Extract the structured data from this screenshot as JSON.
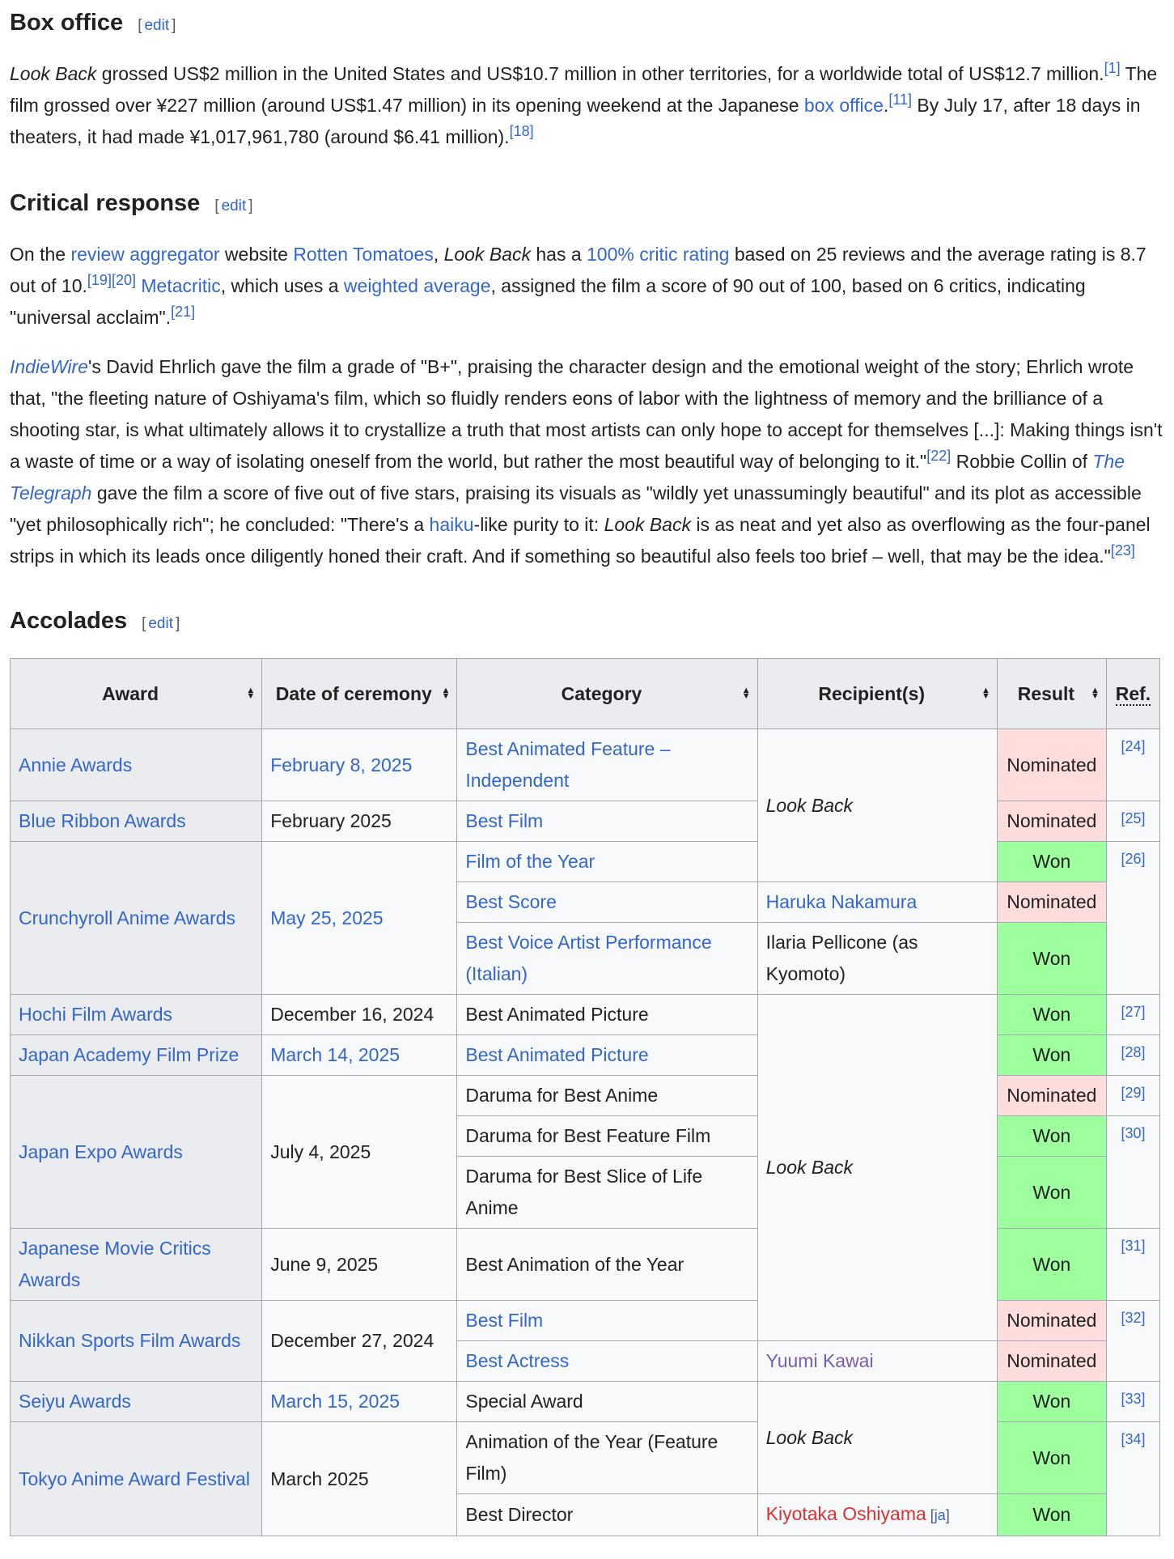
{
  "edit_label": "edit",
  "box_office": {
    "heading": "Box office",
    "paragraph": [
      {
        "t": "Look Back",
        "i": true
      },
      {
        "t": " grossed US$2 million in the United States and US$10.7 million in other territories, for a worldwide total of US$12.7 million."
      },
      {
        "t": "[1]",
        "sup": true
      },
      {
        "t": " The film grossed over ¥227 million (around US$1.47 million) in its opening weekend at the Japanese "
      },
      {
        "t": "box office",
        "link": true
      },
      {
        "t": ".",
        "x": 1
      },
      {
        "t": "[11]",
        "sup": true
      },
      {
        "t": " By July 17, after 18 days in theaters, it had made ¥1,017,961,780 (around $6.41 million)."
      },
      {
        "t": "[18]",
        "sup": true
      }
    ]
  },
  "critical_response": {
    "heading": "Critical response",
    "paragraph1": [
      {
        "t": "On the "
      },
      {
        "t": "review aggregator",
        "link": true
      },
      {
        "t": " website "
      },
      {
        "t": "Rotten Tomatoes",
        "link": true
      },
      {
        "t": ", "
      },
      {
        "t": "Look Back",
        "i": true
      },
      {
        "t": " has a "
      },
      {
        "t": "100% critic rating",
        "link": true
      },
      {
        "t": " based on 25 reviews and the average rating is 8.7 out of 10."
      },
      {
        "t": "[19]",
        "sup": true
      },
      {
        "t": "[20]",
        "sup": true
      },
      {
        "t": " "
      },
      {
        "t": "Metacritic",
        "link": true
      },
      {
        "t": ", which uses a "
      },
      {
        "t": "weighted average",
        "link": true
      },
      {
        "t": ", assigned the film a score of 90 out of 100, based on 6 critics, indicating \"universal acclaim\"."
      },
      {
        "t": "[21]",
        "sup": true
      }
    ],
    "paragraph2": [
      {
        "t": "IndieWire",
        "link": true,
        "i": true
      },
      {
        "t": "'s David Ehrlich gave the film a grade of \"B+\", praising the character design and the emotional weight of the story; Ehrlich wrote that, \"the fleeting nature of Oshiyama's film, which so fluidly renders eons of labor with the lightness of memory and the brilliance of a shooting star, is what ultimately allows it to crystallize a truth that most artists can only hope to accept for themselves [...]: Making things isn't a waste of time or a way of isolating oneself from the world, but rather the most beautiful way of belonging to it.\""
      },
      {
        "t": "[22]",
        "sup": true
      },
      {
        "t": " Robbie Collin of "
      },
      {
        "t": "The Telegraph",
        "link": true,
        "i": true
      },
      {
        "t": " gave the film a score of five out of five stars, praising its visuals as \"wildly yet unassumingly beautiful\" and its plot as accessible \"yet philosophically rich\"; he concluded: \"There's a "
      },
      {
        "t": "haiku",
        "link": true
      },
      {
        "t": "-like purity to it: "
      },
      {
        "t": "Look Back",
        "i": true
      },
      {
        "t": " is as neat and yet also as overflowing as the four-panel strips in which its leads once diligently honed their craft. And if something so beautiful also feels too brief – well, that may be the idea.\""
      },
      {
        "t": "[23]",
        "sup": true
      }
    ]
  },
  "accolades": {
    "heading": "Accolades",
    "columns": [
      "Award",
      "Date of ceremony",
      "Category",
      "Recipient(s)",
      "Result",
      "Ref."
    ],
    "rows": [
      [
        {
          "c": "award",
          "t": "Annie Awards",
          "link": true
        },
        {
          "c": "date",
          "t": "February 8, 2025",
          "link": true
        },
        {
          "c": "cat",
          "t": "Best Animated Feature – Independent",
          "link": true
        },
        {
          "c": "rec",
          "t": "Look Back",
          "i": true,
          "rs": 3
        },
        {
          "c": "res",
          "t": "Nominated"
        },
        {
          "c": "ref",
          "t": "[24]"
        }
      ],
      [
        {
          "c": "award",
          "t": "Blue Ribbon Awards",
          "link": true
        },
        {
          "c": "date",
          "t": "February 2025"
        },
        {
          "c": "cat",
          "t": "Best Film",
          "link": true
        },
        {
          "c": "res",
          "t": "Nominated"
        },
        {
          "c": "ref",
          "t": "[25]"
        }
      ],
      [
        {
          "c": "award",
          "t": "Crunchyroll Anime Awards",
          "link": true,
          "rs": 3
        },
        {
          "c": "date",
          "t": "May 25, 2025",
          "link": true,
          "rs": 3
        },
        {
          "c": "cat",
          "t": "Film of the Year",
          "link": true
        },
        {
          "c": "res",
          "t": "Won"
        },
        {
          "c": "ref",
          "t": "[26]",
          "rs": 3
        }
      ],
      [
        {
          "c": "cat",
          "t": "Best Score",
          "link": true
        },
        {
          "c": "rec",
          "t": "Haruka Nakamura",
          "link": true
        },
        {
          "c": "res",
          "t": "Nominated"
        }
      ],
      [
        {
          "c": "cat",
          "t": "Best Voice Artist Performance (Italian)",
          "link": true
        },
        {
          "c": "rec",
          "t": "Ilaria Pellicone (as Kyomoto)"
        },
        {
          "c": "res",
          "t": "Won"
        }
      ],
      [
        {
          "c": "award",
          "t": "Hochi Film Awards",
          "link": true
        },
        {
          "c": "date",
          "t": "December 16, 2024"
        },
        {
          "c": "cat",
          "t": "Best Animated Picture"
        },
        {
          "c": "rec",
          "t": "Look Back",
          "i": true,
          "rs": 7
        },
        {
          "c": "res",
          "t": "Won"
        },
        {
          "c": "ref",
          "t": "[27]"
        }
      ],
      [
        {
          "c": "award",
          "t": "Japan Academy Film Prize",
          "link": true
        },
        {
          "c": "date",
          "t": "March 14, 2025",
          "link": true
        },
        {
          "c": "cat",
          "t": "Best Animated Picture",
          "link": true
        },
        {
          "c": "res",
          "t": "Won"
        },
        {
          "c": "ref",
          "t": "[28]"
        }
      ],
      [
        {
          "c": "award",
          "t": "Japan Expo Awards",
          "link": true,
          "rs": 3
        },
        {
          "c": "date",
          "t": "July 4, 2025",
          "rs": 3
        },
        {
          "c": "cat",
          "t": "Daruma for Best Anime"
        },
        {
          "c": "res",
          "t": "Nominated"
        },
        {
          "c": "ref",
          "t": "[29]"
        }
      ],
      [
        {
          "c": "cat",
          "t": "Daruma for Best Feature Film"
        },
        {
          "c": "res",
          "t": "Won"
        },
        {
          "c": "ref",
          "t": "[30]",
          "rs": 2
        }
      ],
      [
        {
          "c": "cat",
          "t": "Daruma for Best Slice of Life Anime"
        },
        {
          "c": "res",
          "t": "Won"
        }
      ],
      [
        {
          "c": "award",
          "t": "Japanese Movie Critics Awards",
          "link": true
        },
        {
          "c": "date",
          "t": "June 9, 2025"
        },
        {
          "c": "cat",
          "t": "Best Animation of the Year"
        },
        {
          "c": "res",
          "t": "Won"
        },
        {
          "c": "ref",
          "t": "[31]"
        }
      ],
      [
        {
          "c": "award",
          "t": "Nikkan Sports Film Awards",
          "link": true,
          "rs": 2
        },
        {
          "c": "date",
          "t": "December 27, 2024",
          "rs": 2
        },
        {
          "c": "cat",
          "t": "Best Film",
          "link": true
        },
        {
          "c": "res",
          "t": "Nominated"
        },
        {
          "c": "ref",
          "t": "[32]",
          "rs": 2
        }
      ],
      [
        {
          "c": "cat",
          "t": "Best Actress",
          "link": true
        },
        {
          "c": "rec",
          "t": "Yuumi Kawai",
          "link": "visited"
        },
        {
          "c": "res",
          "t": "Nominated"
        }
      ],
      [
        {
          "c": "award",
          "t": "Seiyu Awards",
          "link": true
        },
        {
          "c": "date",
          "t": "March 15, 2025",
          "link": true
        },
        {
          "c": "cat",
          "t": "Special Award"
        },
        {
          "c": "rec",
          "t": "Look Back",
          "i": true,
          "rs": 2
        },
        {
          "c": "res",
          "t": "Won"
        },
        {
          "c": "ref",
          "t": "[33]"
        }
      ],
      [
        {
          "c": "award",
          "t": "Tokyo Anime Award Festival",
          "link": true,
          "rs": 2
        },
        {
          "c": "date",
          "t": "March 2025",
          "rs": 2
        },
        {
          "c": "cat",
          "t": "Animation of the Year (Feature Film)"
        },
        {
          "c": "res",
          "t": "Won"
        },
        {
          "c": "ref",
          "t": "[34]",
          "rs": 2
        }
      ],
      [
        {
          "c": "cat",
          "t": "Best Director"
        },
        {
          "c": "rec",
          "t": "Kiyotaka Oshiyama",
          "link": "red",
          "extra": "ja"
        },
        {
          "c": "res",
          "t": "Won"
        }
      ]
    ]
  },
  "colors": {
    "link": "#3366cc",
    "red_link": "#d73333",
    "visited_link": "#795cb2",
    "nominated": "#ffdddd",
    "won": "#9eff9e",
    "header": "#eaecf0"
  }
}
